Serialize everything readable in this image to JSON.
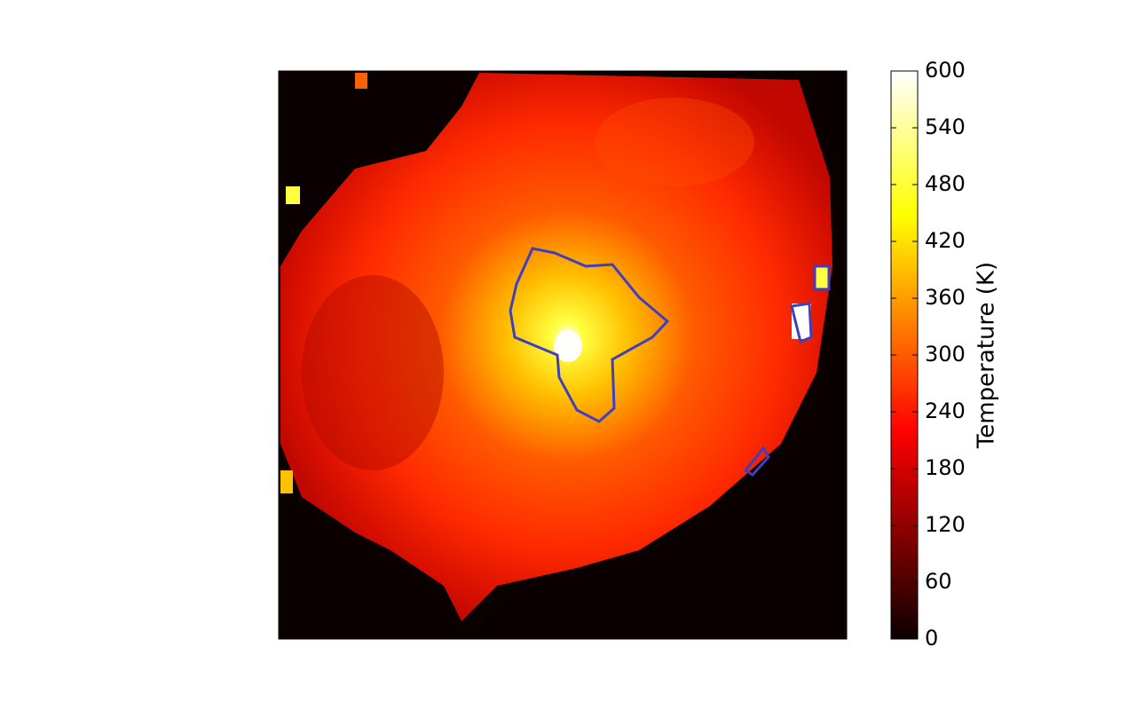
{
  "chart_data": {
    "type": "heatmap",
    "colorbar_label": "Temperature (K)",
    "clim": [
      0,
      600
    ],
    "cticks": [
      0,
      60,
      120,
      180,
      240,
      300,
      360,
      420,
      480,
      540,
      600
    ]
  }
}
